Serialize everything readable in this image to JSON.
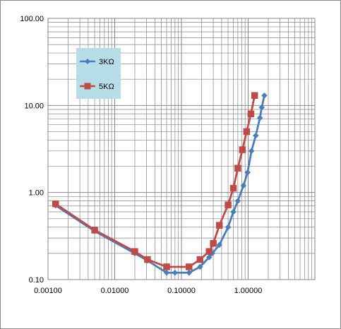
{
  "chart_data": {
    "type": "scatter",
    "x_scale": "log",
    "y_scale": "log",
    "xlim": [
      0.001,
      10
    ],
    "ylim": [
      0.1,
      100
    ],
    "x_tick_labels": [
      "0.00100",
      "0.01000",
      "0.10000",
      "1.00000"
    ],
    "x_tick_values": [
      0.001,
      0.01,
      0.1,
      1
    ],
    "y_tick_labels": [
      "0.10",
      "1.00",
      "10.00",
      "100.00"
    ],
    "y_tick_values": [
      0.1,
      1,
      10,
      100
    ],
    "grid": true,
    "legend_placement": "top-left",
    "series": [
      {
        "name": "3KΩ",
        "color": "#4a7ebb",
        "marker": "diamond",
        "points": [
          [
            0.0013,
            0.71
          ],
          [
            0.005,
            0.36
          ],
          [
            0.02,
            0.2
          ],
          [
            0.031,
            0.165
          ],
          [
            0.06,
            0.12
          ],
          [
            0.08,
            0.12
          ],
          [
            0.13,
            0.12
          ],
          [
            0.19,
            0.14
          ],
          [
            0.26,
            0.18
          ],
          [
            0.29,
            0.2
          ],
          [
            0.37,
            0.25
          ],
          [
            0.5,
            0.4
          ],
          [
            0.6,
            0.6
          ],
          [
            0.7,
            0.8
          ],
          [
            0.85,
            1.2
          ],
          [
            0.98,
            1.7
          ],
          [
            1.12,
            3.0
          ],
          [
            1.3,
            4.5
          ],
          [
            1.5,
            7.2
          ],
          [
            1.6,
            9.5
          ],
          [
            1.75,
            13
          ]
        ]
      },
      {
        "name": "5KΩ",
        "color": "#be4b48",
        "marker": "square",
        "points": [
          [
            0.0013,
            0.74
          ],
          [
            0.005,
            0.37
          ],
          [
            0.02,
            0.21
          ],
          [
            0.031,
            0.17
          ],
          [
            0.06,
            0.14
          ],
          [
            0.13,
            0.14
          ],
          [
            0.19,
            0.17
          ],
          [
            0.26,
            0.21
          ],
          [
            0.3,
            0.26
          ],
          [
            0.37,
            0.42
          ],
          [
            0.5,
            0.72
          ],
          [
            0.6,
            1.12
          ],
          [
            0.7,
            1.9
          ],
          [
            0.82,
            3.1
          ],
          [
            0.95,
            5.0
          ],
          [
            1.1,
            8.0
          ],
          [
            1.25,
            13
          ]
        ]
      }
    ]
  }
}
